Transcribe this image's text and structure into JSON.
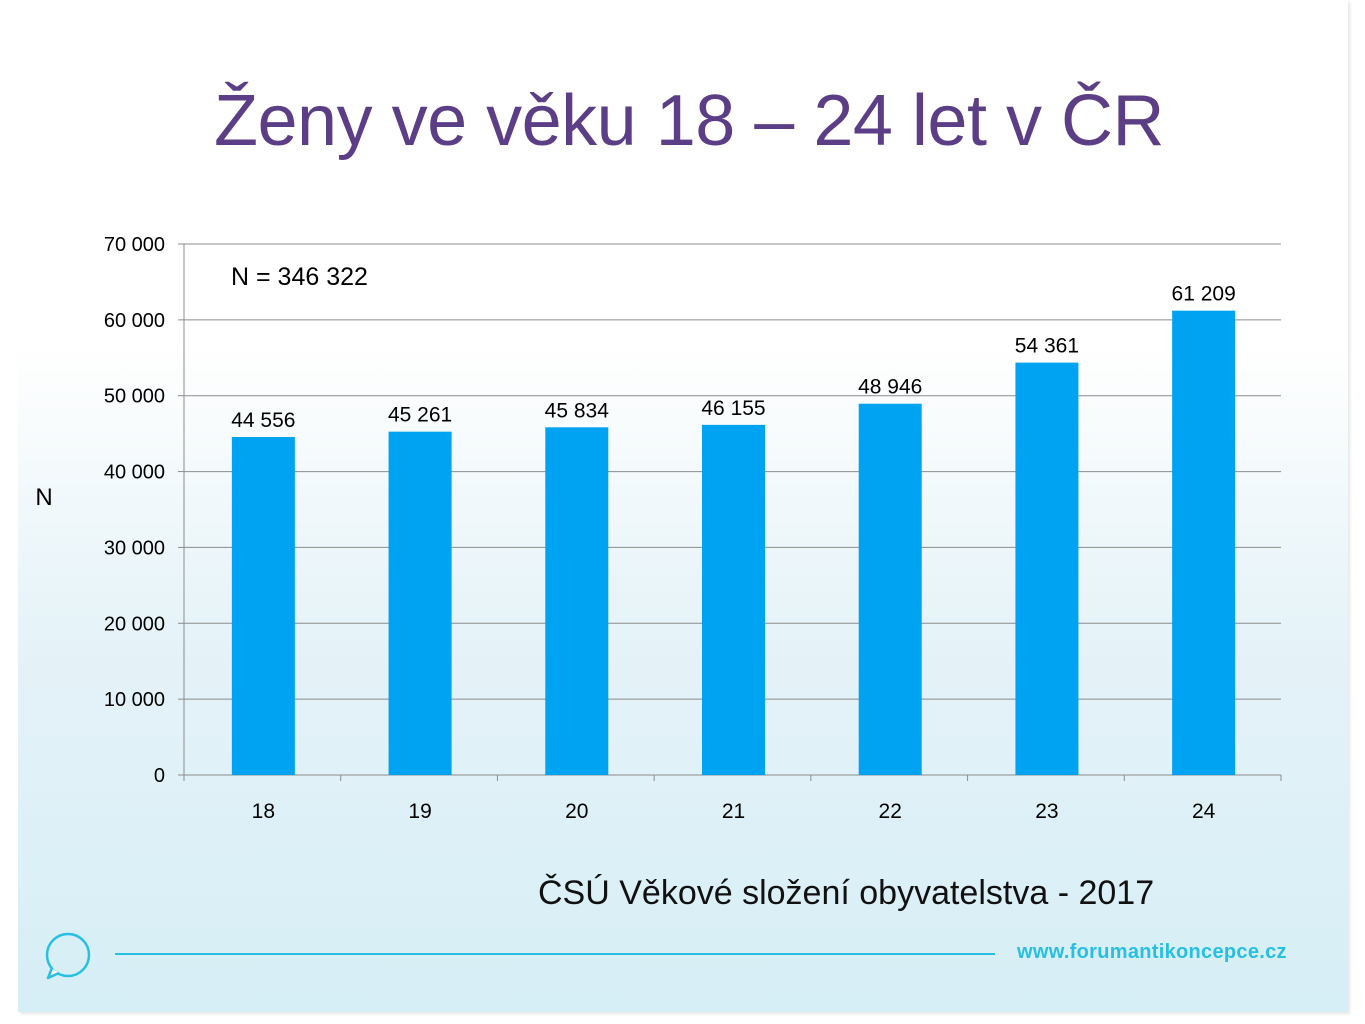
{
  "title": "Ženy ve věku 18 – 24 let v ČR",
  "chart_data": {
    "type": "bar",
    "categories": [
      "18",
      "19",
      "20",
      "21",
      "22",
      "23",
      "24"
    ],
    "values": [
      44556,
      45261,
      45834,
      46155,
      48946,
      54361,
      61209
    ],
    "data_labels": [
      "44 556",
      "45 261",
      "45 834",
      "46 155",
      "48 946",
      "54 361",
      "61 209"
    ],
    "ylabel": "N",
    "xlabel": "",
    "ylim": [
      0,
      70000
    ],
    "yticks": [
      0,
      10000,
      20000,
      30000,
      40000,
      50000,
      60000,
      70000
    ],
    "ytick_labels": [
      "0",
      "10 000",
      "20 000",
      "30 000",
      "40 000",
      "50 000",
      "60 000",
      "70 000"
    ],
    "annotation": "N = 346 322",
    "grid": "horizontal",
    "bar_color": "#00a2f2"
  },
  "source": "ČSÚ Věkové složení obyvatelstva - 2017",
  "footer": {
    "url": "www.forumantikoncepce.cz",
    "logo_icon": "speech-bubble-icon",
    "accent_color": "#27c0e3"
  },
  "colors": {
    "title": "#5b3e86"
  }
}
